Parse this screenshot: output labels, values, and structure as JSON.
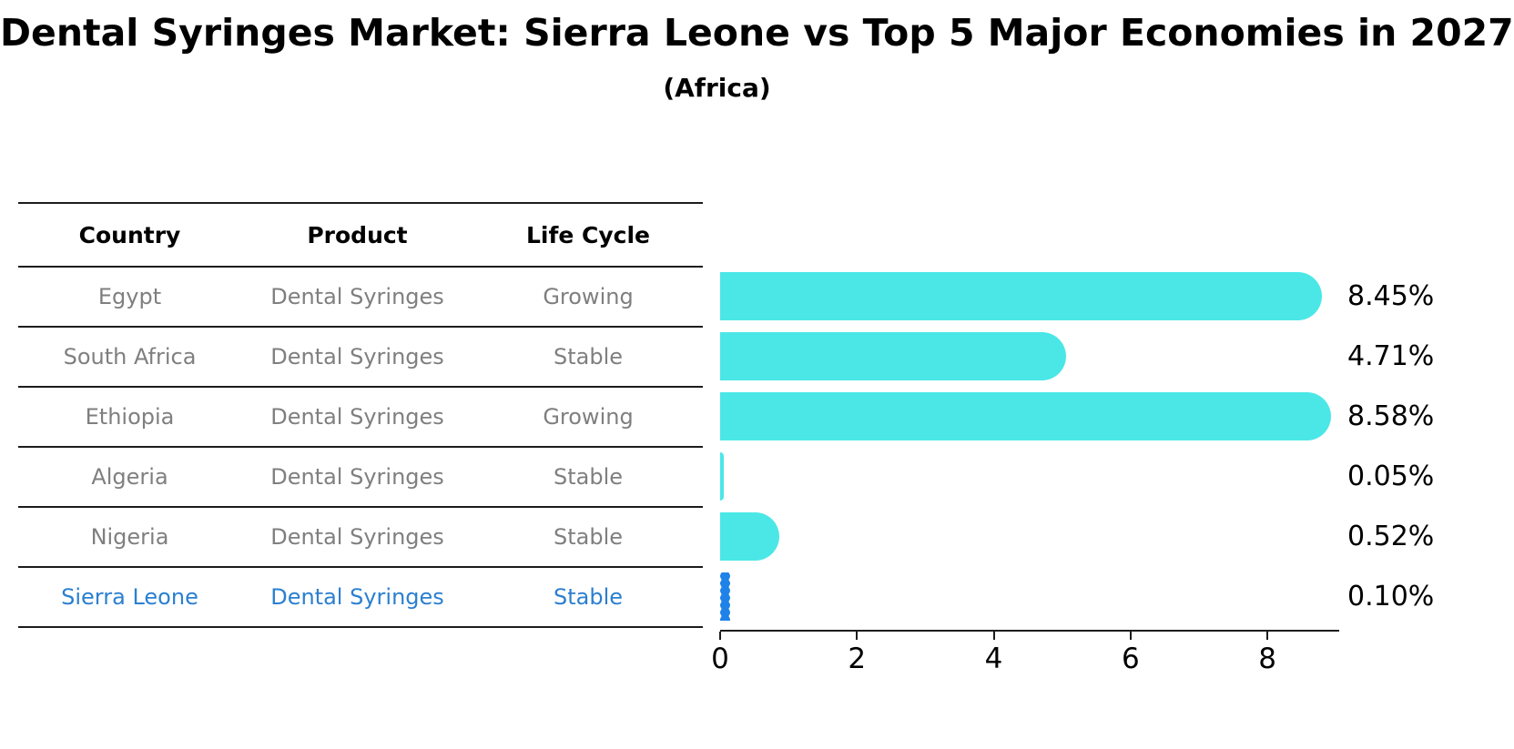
{
  "title": "Dental Syringes Market: Sierra Leone vs Top 5 Major Economies in 2027",
  "subtitle": "(Africa)",
  "table": {
    "headers": [
      "Country",
      "Product",
      "Life Cycle"
    ],
    "rows": [
      {
        "country": "Egypt",
        "product": "Dental Syringes",
        "life_cycle": "Growing",
        "highlight": false
      },
      {
        "country": "South Africa",
        "product": "Dental Syringes",
        "life_cycle": "Stable",
        "highlight": false
      },
      {
        "country": "Ethiopia",
        "product": "Dental Syringes",
        "life_cycle": "Growing",
        "highlight": false
      },
      {
        "country": "Algeria",
        "product": "Dental Syringes",
        "life_cycle": "Stable",
        "highlight": false
      },
      {
        "country": "Nigeria",
        "product": "Dental Syringes",
        "life_cycle": "Stable",
        "highlight": false
      },
      {
        "country": "Sierra Leone",
        "product": "Dental Syringes",
        "life_cycle": "Stable",
        "highlight": true
      }
    ]
  },
  "chart_data": {
    "type": "bar",
    "orientation": "horizontal",
    "title": "Dental Syringes Market: Sierra Leone vs Top 5 Major Economies in 2027",
    "subtitle": "(Africa)",
    "categories": [
      "Egypt",
      "South Africa",
      "Ethiopia",
      "Algeria",
      "Nigeria",
      "Sierra Leone"
    ],
    "values": [
      8.45,
      4.71,
      8.58,
      0.05,
      0.52,
      0.1
    ],
    "value_labels": [
      "8.45%",
      "4.71%",
      "8.58%",
      "0.05%",
      "0.52%",
      "0.10%"
    ],
    "xlim": [
      0,
      9.05
    ],
    "xticks": [
      0,
      2,
      4,
      6,
      8
    ],
    "grid": false,
    "legend": false,
    "highlight_index": 5,
    "bar_color": "#4be7e7",
    "highlight_color": "#1e82e8"
  },
  "colors": {
    "bar_cyan": "#4be7e7",
    "marker_blue": "#1e82e8",
    "highlight_text_blue": "#2b7fd0",
    "table_text_gray": "#7f7f7f",
    "axis_black": "#1c1c1c"
  }
}
